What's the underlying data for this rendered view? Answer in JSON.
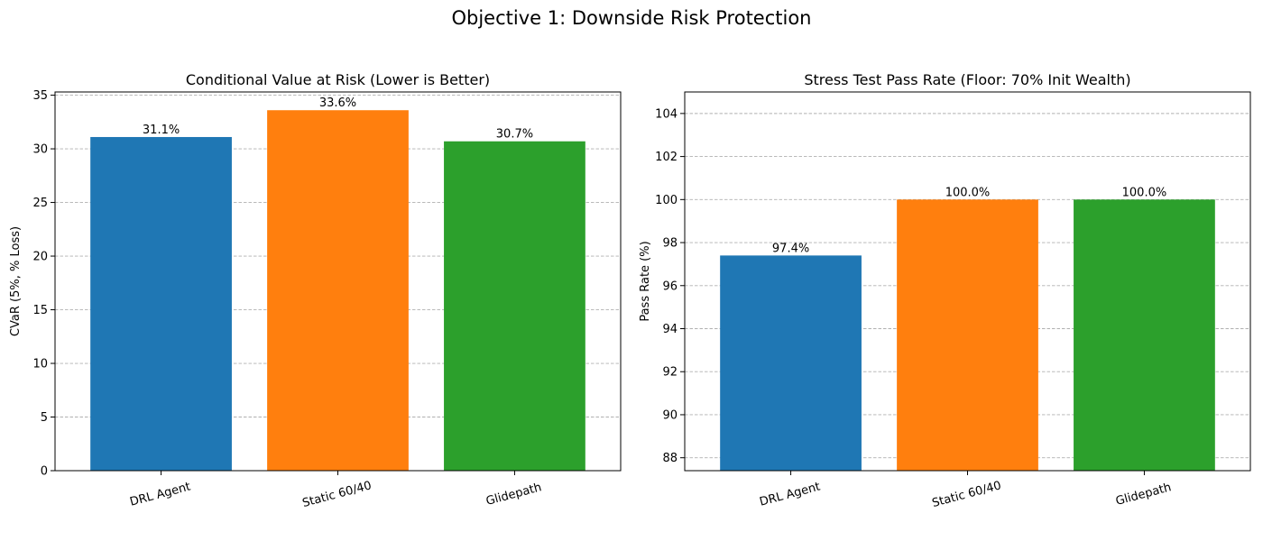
{
  "figure": {
    "suptitle": "Objective 1: Downside Risk Protection"
  },
  "chart_data": [
    {
      "type": "bar",
      "title": "Conditional Value at Risk (Lower is Better)",
      "xlabel": "",
      "ylabel": "CVaR (5%, % Loss)",
      "categories": [
        "DRL Agent",
        "Static 60/40",
        "Glidepath"
      ],
      "values": [
        31.1,
        33.6,
        30.7
      ],
      "data_labels": [
        "31.1%",
        "33.6%",
        "30.7%"
      ],
      "colors": [
        "#1f77b4",
        "#ff7f0e",
        "#2ca02c"
      ],
      "ylim": [
        0,
        35.3
      ],
      "yticks": [
        0,
        5,
        10,
        15,
        20,
        25,
        30,
        35
      ],
      "grid": "y-dashed"
    },
    {
      "type": "bar",
      "title": "Stress Test Pass Rate (Floor: 70% Init Wealth)",
      "xlabel": "",
      "ylabel": "Pass Rate (%)",
      "categories": [
        "DRL Agent",
        "Static 60/40",
        "Glidepath"
      ],
      "values": [
        97.4,
        100.0,
        100.0
      ],
      "data_labels": [
        "97.4%",
        "100.0%",
        "100.0%"
      ],
      "colors": [
        "#1f77b4",
        "#ff7f0e",
        "#2ca02c"
      ],
      "ylim": [
        87.4,
        105
      ],
      "yticks": [
        88,
        90,
        92,
        94,
        96,
        98,
        100,
        102,
        104
      ],
      "grid": "y-dashed"
    }
  ]
}
